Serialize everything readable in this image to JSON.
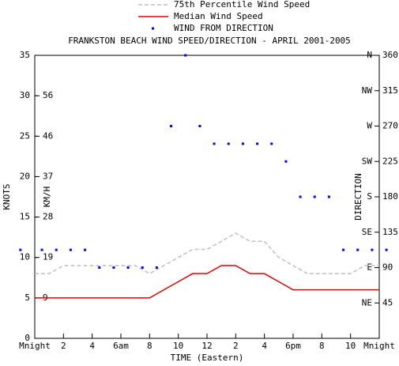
{
  "chart_data": {
    "type": "line",
    "title": "FRANKSTON BEACH WIND SPEED/DIRECTION - APRIL 2001-2005",
    "x_label": "TIME (Eastern)",
    "y_label": "KNOTS",
    "y_kmh_label": "KM/H",
    "y2_label": "DIRECTION",
    "x": [
      0,
      1,
      2,
      3,
      4,
      5,
      6,
      7,
      8,
      9,
      10,
      11,
      12,
      13,
      14,
      15,
      16,
      17,
      18,
      19,
      20,
      21,
      22,
      23,
      24
    ],
    "xlim": [
      0,
      24
    ],
    "xticks": [
      {
        "value": 0,
        "label": "Mnight"
      },
      2,
      4,
      {
        "value": 6,
        "label": "6am"
      },
      8,
      10,
      12,
      {
        "value": 14,
        "label": "2"
      },
      {
        "value": 16,
        "label": "4"
      },
      {
        "value": 18,
        "label": "6pm"
      },
      {
        "value": 20,
        "label": "8"
      },
      {
        "value": 22,
        "label": "10"
      },
      {
        "value": 24,
        "label": "Mnight"
      }
    ],
    "ylim": [
      0,
      35
    ],
    "yticks": [
      0,
      5,
      10,
      15,
      20,
      25,
      30,
      35
    ],
    "y_kmh_ticks": [
      {
        "value": 5,
        "label": "9"
      },
      {
        "value": 10,
        "label": "19"
      },
      {
        "value": 15,
        "label": "28"
      },
      {
        "value": 20,
        "label": "37"
      },
      {
        "value": 25,
        "label": "46"
      },
      {
        "value": 30,
        "label": "56"
      }
    ],
    "y2lim": [
      0,
      360
    ],
    "y2ticks": [
      45,
      90,
      135,
      180,
      225,
      270,
      315,
      360
    ],
    "compass_ticks": [
      {
        "value": 45,
        "label": "NE"
      },
      {
        "value": 90,
        "label": "E"
      },
      {
        "value": 135,
        "label": "SE"
      },
      {
        "value": 180,
        "label": "S"
      },
      {
        "value": 225,
        "label": "SW"
      },
      {
        "value": 270,
        "label": "W"
      },
      {
        "value": 315,
        "label": "NW"
      },
      {
        "value": 360,
        "label": "N"
      }
    ],
    "series": [
      {
        "name": "75th Percentile Wind Speed",
        "type": "line",
        "style": "dashed",
        "color": "#c0c0c0",
        "values": [
          8,
          8,
          9,
          9,
          9,
          9,
          9,
          9,
          8,
          9,
          10,
          11,
          11,
          12,
          13,
          12,
          12,
          10,
          9,
          8,
          8,
          8,
          8,
          9,
          9
        ]
      },
      {
        "name": "Median Wind Speed",
        "type": "line",
        "style": "solid",
        "color": "#e00000",
        "values": [
          5,
          5,
          5,
          5,
          5,
          5,
          5,
          5,
          5,
          6,
          7,
          8,
          8,
          9,
          9,
          8,
          8,
          7,
          6,
          6,
          6,
          6,
          6,
          6,
          6
        ]
      },
      {
        "name": "WIND FROM DIRECTION",
        "type": "scatter",
        "axis": "y2",
        "color": "#0000ff",
        "x": [
          -1,
          0.5,
          1.5,
          2.5,
          3.5,
          4.5,
          5.5,
          6.5,
          7.5,
          8.5,
          9.5,
          10.5,
          11.5,
          12.5,
          13.5,
          14.5,
          15.5,
          16.5,
          17.5,
          18.5,
          19.5,
          20.5,
          21.5,
          22.5,
          23.5,
          24.5
        ],
        "values": [
          112.5,
          112.5,
          112.5,
          112.5,
          112.5,
          90,
          90,
          90,
          90,
          90,
          270,
          360,
          270,
          247.5,
          247.5,
          247.5,
          247.5,
          247.5,
          225,
          180,
          180,
          180,
          112.5,
          112.5,
          112.5,
          112.5
        ]
      }
    ]
  }
}
